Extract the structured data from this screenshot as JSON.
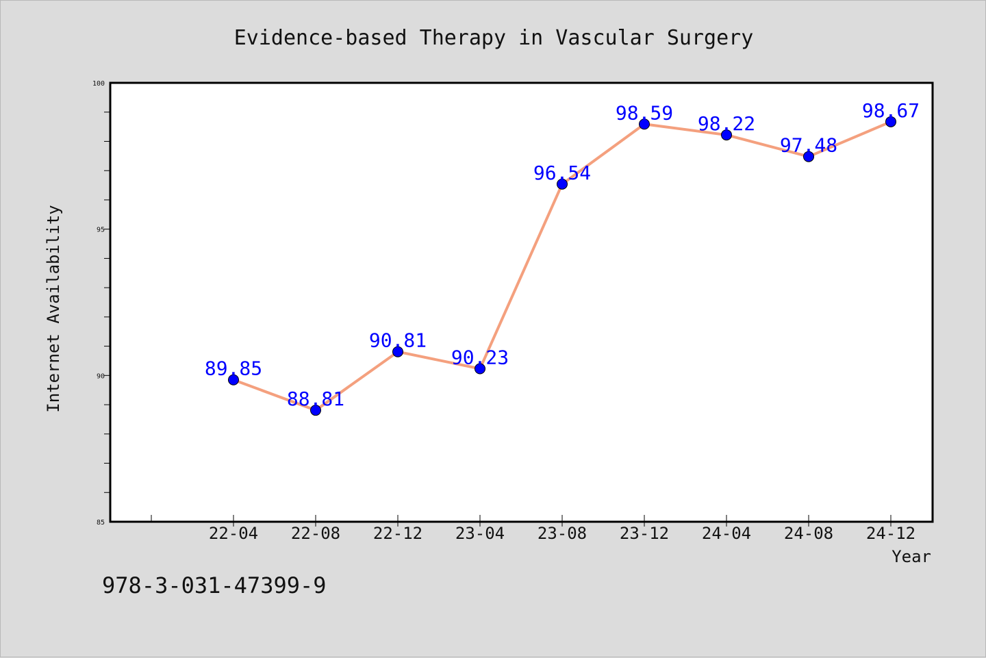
{
  "chart_data": {
    "type": "line",
    "title": "Evidence-based Therapy in Vascular Surgery",
    "xlabel": "Year",
    "ylabel": "Internet Availability",
    "categories": [
      "22-04",
      "22-08",
      "22-12",
      "23-04",
      "23-08",
      "23-12",
      "24-04",
      "24-08",
      "24-12"
    ],
    "series": [
      {
        "values": [
          89.85,
          88.81,
          90.81,
          90.23,
          96.54,
          98.59,
          98.22,
          97.48,
          98.67
        ],
        "labels": [
          "89.85",
          "88.81",
          "90.81",
          "90.23",
          "96.54",
          "98.59",
          "98.22",
          "97.48",
          "98.67"
        ],
        "line_color": "#f4a07e",
        "marker_color": "#0000ff"
      }
    ],
    "ylim": [
      85,
      100
    ],
    "yticks": [
      85,
      90,
      95,
      100
    ],
    "ytick_labels": [
      "85",
      "90",
      "95",
      "100"
    ],
    "grid": false,
    "legend": "none"
  },
  "footer": {
    "isbn": "978-3-031-47399-9"
  }
}
